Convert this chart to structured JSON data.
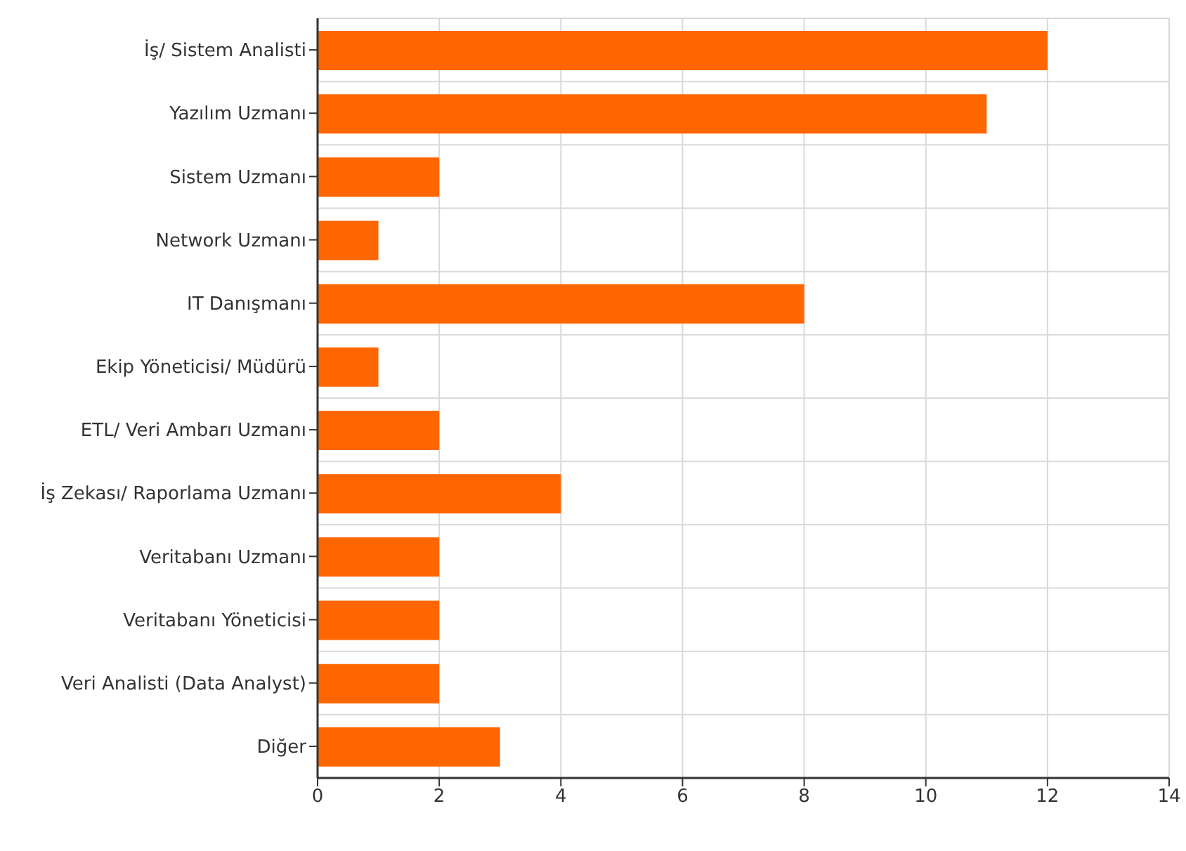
{
  "chart_data": {
    "type": "bar",
    "orientation": "horizontal",
    "categories": [
      "İş/ Sistem Analisti",
      "Yazılım Uzmanı",
      "Sistem Uzmanı",
      "Network Uzmanı",
      "IT Danışmanı",
      "Ekip Yöneticisi/ Müdürü",
      "ETL/ Veri Ambarı Uzmanı",
      "İş Zekası/ Raporlama Uzmanı",
      "Veritabanı Uzmanı",
      "Veritabanı Yöneticisi",
      "Veri Analisti (Data Analyst)",
      "Diğer"
    ],
    "values": [
      12,
      11,
      2,
      1,
      8,
      1,
      2,
      4,
      2,
      2,
      2,
      3
    ],
    "color": "#ff6600",
    "xlim": [
      0,
      14
    ],
    "xticks": [
      0,
      2,
      4,
      6,
      8,
      10,
      12,
      14
    ],
    "grid": true
  }
}
